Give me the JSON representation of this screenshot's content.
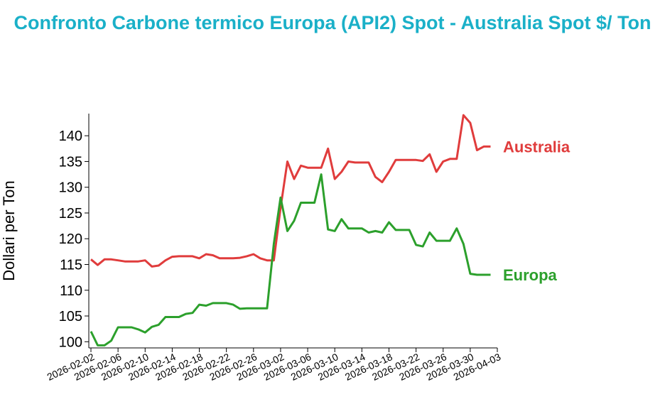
{
  "chart_data": {
    "type": "line",
    "title": "Confronto Carbone termico Europa (API2) Spot - Australia Spot $/ Ton",
    "ylabel": "Dollari per Ton",
    "x": [
      "2026-02-02",
      "2026-02-03",
      "2026-02-04",
      "2026-02-05",
      "2026-02-06",
      "2026-02-07",
      "2026-02-08",
      "2026-02-09",
      "2026-02-10",
      "2026-02-11",
      "2026-02-12",
      "2026-02-13",
      "2026-02-14",
      "2026-02-15",
      "2026-02-16",
      "2026-02-17",
      "2026-02-18",
      "2026-02-19",
      "2026-02-20",
      "2026-02-21",
      "2026-02-22",
      "2026-02-23",
      "2026-02-24",
      "2026-02-25",
      "2026-02-26",
      "2026-02-27",
      "2026-02-28",
      "2026-03-01",
      "2026-03-02",
      "2026-03-03",
      "2026-03-04",
      "2026-03-05",
      "2026-03-06",
      "2026-03-07",
      "2026-03-08",
      "2026-03-09",
      "2026-03-10",
      "2026-03-11",
      "2026-03-12",
      "2026-03-13",
      "2026-03-14",
      "2026-03-15",
      "2026-03-16",
      "2026-03-17",
      "2026-03-18",
      "2026-03-19",
      "2026-03-20",
      "2026-03-21",
      "2026-03-22",
      "2026-03-23",
      "2026-03-24",
      "2026-03-25",
      "2026-03-26",
      "2026-03-27",
      "2026-03-28",
      "2026-03-29",
      "2026-03-30",
      "2026-03-31",
      "2026-04-01",
      "2026-04-02"
    ],
    "series": [
      {
        "name": "Australia",
        "color": "#e03c3c",
        "values": [
          116,
          114.9,
          116,
          116,
          115.8,
          115.6,
          115.6,
          115.6,
          115.8,
          114.6,
          114.8,
          115.8,
          116.5,
          116.6,
          116.6,
          116.6,
          116.2,
          117,
          116.8,
          116.2,
          116.2,
          116.2,
          116.3,
          116.6,
          117,
          116.2,
          115.8,
          115.8,
          126,
          135,
          131.6,
          134.2,
          133.8,
          133.8,
          133.8,
          137.5,
          131.6,
          133,
          135,
          134.8,
          134.8,
          134.8,
          132,
          131,
          133,
          135.3,
          135.3,
          135.3,
          135.3,
          135.1,
          136.4,
          133,
          135,
          135.5,
          135.5,
          144,
          142.5,
          137.2,
          137.9,
          137.9
        ]
      },
      {
        "name": "Europa",
        "color": "#2ca02c",
        "values": [
          102,
          99.3,
          99.3,
          100.2,
          102.8,
          102.8,
          102.8,
          102.4,
          101.8,
          102.9,
          103.3,
          104.8,
          104.8,
          104.8,
          105.4,
          105.6,
          107.2,
          107,
          107.5,
          107.5,
          107.5,
          107.2,
          106.4,
          106.5,
          106.5,
          106.5,
          106.5,
          119,
          128,
          121.5,
          123.5,
          127,
          127,
          127,
          132.5,
          121.8,
          121.5,
          123.8,
          122,
          122,
          122,
          121.2,
          121.5,
          121.2,
          123.2,
          121.7,
          121.7,
          121.7,
          118.8,
          118.5,
          121.2,
          119.6,
          119.6,
          119.6,
          122,
          119,
          113.2,
          113,
          113,
          113
        ]
      }
    ],
    "xlim": [
      "2026-02-02",
      "2026-04-03"
    ],
    "xticks": [
      "2026-02-02",
      "2026-02-06",
      "2026-02-10",
      "2026-02-14",
      "2026-02-18",
      "2026-02-22",
      "2026-02-26",
      "2026-03-02",
      "2026-03-06",
      "2026-03-10",
      "2026-03-14",
      "2026-03-18",
      "2026-03-22",
      "2026-03-26",
      "2026-03-30",
      "2026-04-03"
    ],
    "ylim": [
      98.8,
      144.3
    ],
    "yticks": [
      100,
      105,
      110,
      115,
      120,
      125,
      130,
      135,
      140
    ]
  }
}
